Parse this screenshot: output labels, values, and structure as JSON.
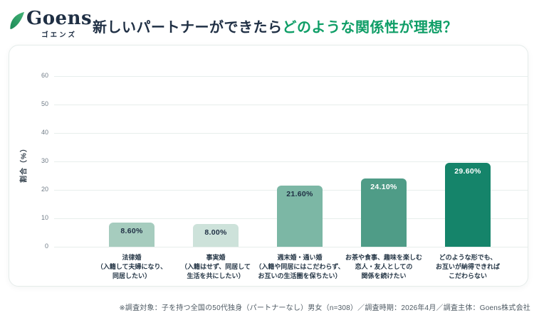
{
  "logo": {
    "wordmark": "Goens",
    "kana": "ゴエンズ"
  },
  "title": {
    "prefix": "新しいパートナーができたら",
    "highlight": "どのような関係性が理想？"
  },
  "footnote": "※調査対象：子を持つ全国の50代独身（パートナーなし）男女（n=308）／調査時期：2026年4月／調査主体：Goens株式会社",
  "colors": {
    "title_dark": "#1f2f44",
    "title_green": "#0f9e67",
    "leaf_green": "#2f9f63",
    "grid": "#e7eeec",
    "card_border": "#e5ecea",
    "tick_gray": "#707c87",
    "footnote_gray": "#4e5a63"
  },
  "chart_data": {
    "type": "bar",
    "title": "新しいパートナーができたらどのような関係性が理想？",
    "xlabel": "",
    "ylabel": "割合（%）",
    "ylim": [
      0,
      60
    ],
    "yticks": [
      0,
      10,
      20,
      30,
      40,
      50,
      60
    ],
    "grid": true,
    "legend_position": "none",
    "categories": [
      [
        "法律婚",
        "（入籍して夫婦になり、",
        "同居したい）"
      ],
      [
        "事実婚",
        "（入籍はせず、同居して",
        "生活を共にしたい）"
      ],
      [
        "週末婚・通い婚",
        "（入籍や同居にはこだわらず、",
        "お互いの生活圏を保ちたい）"
      ],
      [
        "お茶や食事、趣味を楽しむ",
        "恋人・友人としての",
        "関係を続けたい"
      ],
      [
        "どのような形でも、",
        "お互いが納得できれば",
        "こだわらない"
      ]
    ],
    "values": [
      8.6,
      8.0,
      21.6,
      24.1,
      29.6
    ],
    "value_labels": [
      "8.60%",
      "8.00%",
      "21.60%",
      "24.10%",
      "29.60%"
    ],
    "bar_colors": [
      "#a6ccbe",
      "#cde2da",
      "#7cb7a5",
      "#4f9c87",
      "#15846a"
    ],
    "value_label_colors": [
      "#1f2f44",
      "#1f2f44",
      "#1f2f44",
      "#ffffff",
      "#ffffff"
    ]
  }
}
